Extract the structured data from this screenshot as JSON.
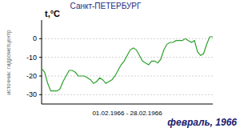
{
  "chart_data": {
    "type": "line",
    "title": "Санкт-ПЕТЕРБУРГ",
    "ylabel": "t,°C",
    "xlabel": "01.02.1966 - 28.02.1966",
    "annotations": [
      "источник: гидрометцентр",
      "февраль, 1966"
    ],
    "x": [
      1,
      1.5,
      2,
      2.5,
      3,
      3.5,
      4,
      4.5,
      5,
      5.5,
      6,
      6.5,
      7,
      7.5,
      8,
      8.5,
      9,
      9.5,
      10,
      10.5,
      11,
      11.5,
      12,
      12.5,
      13,
      13.5,
      14,
      14.5,
      15,
      15.5,
      16,
      16.5,
      17,
      17.5,
      18,
      18.5,
      19,
      19.5,
      20,
      20.5,
      21,
      21.5,
      22,
      22.5,
      23,
      23.5,
      24,
      24.5,
      25,
      25.5,
      26,
      26.5,
      27,
      27.5,
      28,
      28.5,
      29
    ],
    "values": [
      -16,
      -18,
      -24,
      -28,
      -28,
      -28,
      -27,
      -23,
      -20,
      -17,
      -17,
      -18,
      -20,
      -20,
      -20,
      -21,
      -22,
      -24,
      -23,
      -21,
      -22,
      -24,
      -23,
      -22,
      -20,
      -17,
      -14,
      -12,
      -9,
      -6,
      -5,
      -6,
      -9,
      -12,
      -13,
      -14,
      -12,
      -12,
      -13,
      -11,
      -6,
      -3,
      -2,
      -2,
      -1,
      -1,
      -1,
      0,
      -1,
      -2,
      -1,
      -7,
      -9,
      -8,
      -3,
      1,
      1
    ],
    "color": "#2ca02c",
    "xlim": [
      1,
      29
    ],
    "ylim": [
      -35,
      10
    ],
    "yticks": [
      -30,
      -20,
      -10,
      0
    ],
    "grid": true,
    "tick_labels": "y"
  }
}
